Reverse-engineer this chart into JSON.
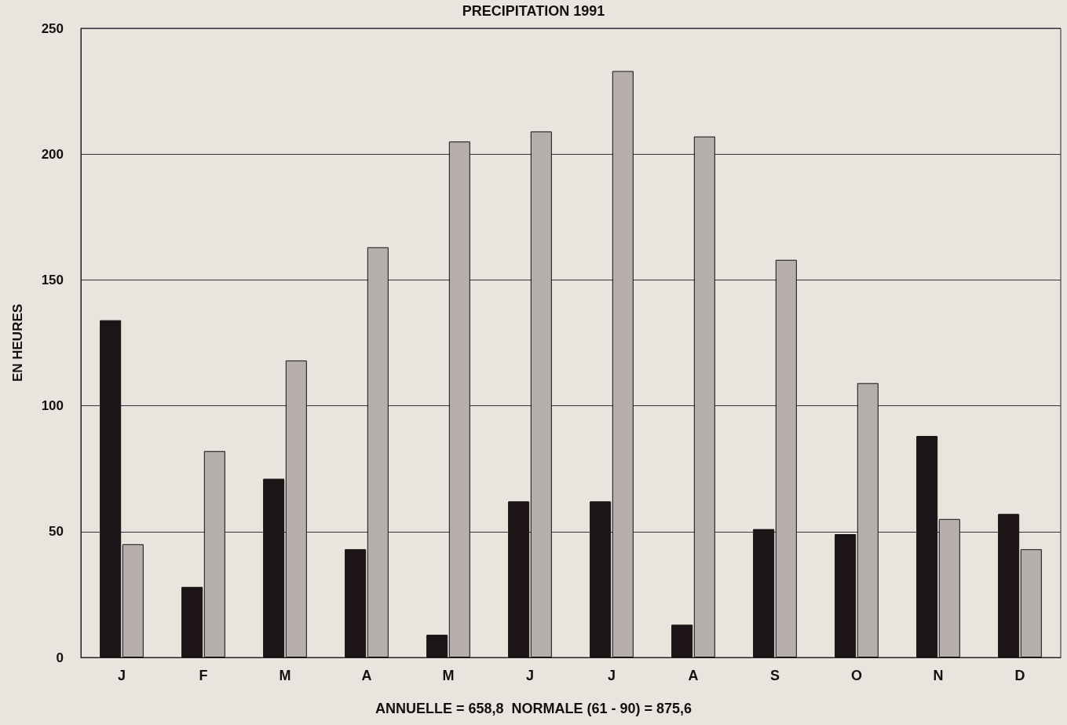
{
  "chart_data": {
    "type": "bar",
    "title": "PRECIPITATION 1991",
    "ylabel": "EN HEURES",
    "annotations": [
      "ANNUELLE = 658,8  NORMALE (61 - 90) = 875,6"
    ],
    "categories": [
      "J",
      "F",
      "M",
      "A",
      "M",
      "J",
      "J",
      "A",
      "S",
      "O",
      "N",
      "D"
    ],
    "series": [
      {
        "color": "#1c1416",
        "values": [
          134,
          28,
          71,
          43,
          9,
          62,
          62,
          13,
          51,
          49,
          88,
          57
        ]
      },
      {
        "color": "#b5aeaa",
        "values": [
          45,
          82,
          118,
          163,
          205,
          209,
          233,
          207,
          158,
          109,
          55,
          43
        ]
      }
    ],
    "ylim": [
      0,
      250
    ],
    "yticks": [
      0,
      50,
      100,
      150,
      200,
      250
    ],
    "grid": "y"
  }
}
